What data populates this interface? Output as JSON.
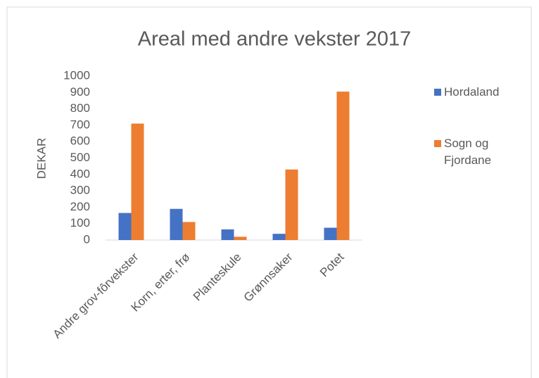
{
  "chart_data": {
    "type": "bar",
    "title": "Areal med andre vekster 2017",
    "y_label": "DEKAR",
    "categories": [
      "Andre grov-fôrvekster",
      "Korn, erter, frø",
      "Planteskule",
      "Grønnsaker",
      "Potet"
    ],
    "series": [
      {
        "name": "Hordaland",
        "color": "#4472c4",
        "values": [
          165,
          190,
          65,
          38,
          75
        ]
      },
      {
        "name": "Sogn og Fjordane",
        "color": "#ed7d31",
        "values": [
          710,
          110,
          20,
          430,
          905
        ]
      }
    ],
    "ylim": [
      0,
      1000
    ],
    "yticks": [
      0,
      100,
      200,
      300,
      400,
      500,
      600,
      700,
      800,
      900,
      1000
    ],
    "grid": false,
    "legend": "right"
  }
}
